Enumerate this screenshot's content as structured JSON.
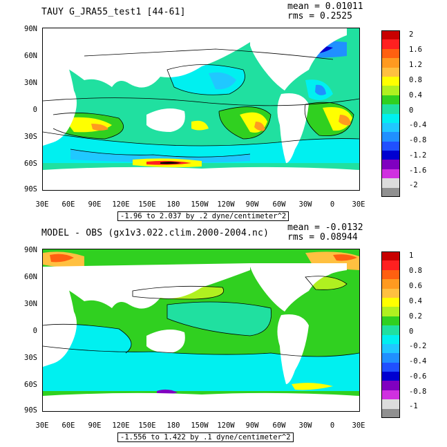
{
  "panels": [
    {
      "title": "TAUY G_JRA55_test1 [44-61]",
      "mean": "mean = 0.01011",
      "rms": "rms = 0.2525",
      "range_label": "-1.96 to 2.037 by .2 dyne/centimeter^2",
      "lat_labels": [
        "90N",
        "60N",
        "30N",
        "0",
        "30S",
        "60S",
        "90S"
      ],
      "lon_labels": [
        "30E",
        "60E",
        "90E",
        "120E",
        "150E",
        "180",
        "150W",
        "120W",
        "90W",
        "60W",
        "30W",
        "0",
        "30E"
      ],
      "colorbar_labels": [
        "2",
        "1.6",
        "1.2",
        "0.8",
        "0.4",
        "0",
        "-0.4",
        "-0.8",
        "-1.2",
        "-1.6",
        "-2"
      ],
      "colorbar_colors": [
        "#c80000",
        "#ff2020",
        "#ff6010",
        "#ff9a20",
        "#ffc040",
        "#ffff00",
        "#b0f020",
        "#30d020",
        "#20e0a0",
        "#00f0f0",
        "#20c8ff",
        "#2090ff",
        "#2050ff",
        "#0000d0",
        "#8000c0",
        "#d030e0",
        "#dcdcdc",
        "#909090"
      ],
      "ocean_color": "#20e0a0"
    },
    {
      "title": "MODEL - OBS (gx1v3.022.clim.2000-2004.nc)",
      "mean": "mean = -0.0132",
      "rms": "rms = 0.08944",
      "range_label": "-1.556 to 1.422 by .1 dyne/centimeter^2",
      "lat_labels": [
        "90N",
        "60N",
        "30N",
        "0",
        "30S",
        "60S",
        "90S"
      ],
      "lon_labels": [
        "30E",
        "60E",
        "90E",
        "120E",
        "150E",
        "180",
        "150W",
        "120W",
        "90W",
        "60W",
        "30W",
        "0",
        "30E"
      ],
      "colorbar_labels": [
        "1",
        "0.8",
        "0.6",
        "0.4",
        "0.2",
        "0",
        "-0.2",
        "-0.4",
        "-0.6",
        "-0.8",
        "-1"
      ],
      "colorbar_colors": [
        "#c80000",
        "#ff2020",
        "#ff6010",
        "#ff9a20",
        "#ffc040",
        "#ffff00",
        "#b0f020",
        "#30d020",
        "#20e0a0",
        "#00f0f0",
        "#20c8ff",
        "#2090ff",
        "#2050ff",
        "#0000d0",
        "#8000c0",
        "#d030e0",
        "#dcdcdc",
        "#909090"
      ],
      "ocean_color": "#30d020"
    }
  ],
  "map_colors": {
    "land": "#ffffff",
    "contour": "#000000",
    "cyan": "#00f0f0",
    "light_blue": "#20c8ff",
    "blue": "#2090ff",
    "deep_blue": "#0000d0",
    "teal": "#20e0a0",
    "green": "#30d020",
    "yellow": "#ffff00",
    "orange": "#ff9a20",
    "red": "#ff2020",
    "dark_red": "#c80000",
    "black": "#000000"
  }
}
